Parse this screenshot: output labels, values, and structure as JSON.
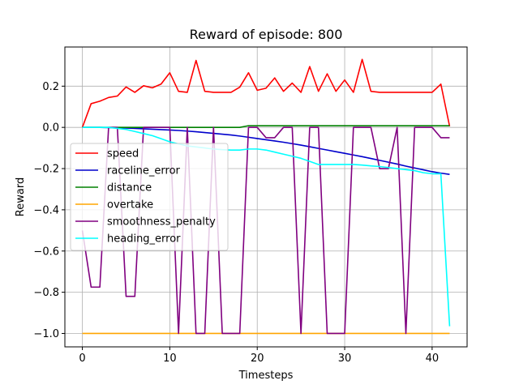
{
  "chart_data": {
    "type": "line",
    "title": "Reward of episode: 800",
    "xlabel": "Timesteps",
    "ylabel": "Reward",
    "xlim": [
      -2,
      44
    ],
    "ylim": [
      -1.065,
      0.39
    ],
    "xticks": [
      0,
      10,
      20,
      30,
      40
    ],
    "yticks": [
      -1.0,
      -0.8,
      -0.6,
      -0.4,
      -0.2,
      0.0,
      0.2
    ],
    "ytick_labels": [
      "−1.0",
      "−0.8",
      "−0.6",
      "−0.4",
      "−0.2",
      "0.0",
      "0.2"
    ],
    "grid": true,
    "legend_position": "center-left",
    "x": [
      0,
      1,
      2,
      3,
      4,
      5,
      6,
      7,
      8,
      9,
      10,
      11,
      12,
      13,
      14,
      15,
      16,
      17,
      18,
      19,
      20,
      21,
      22,
      23,
      24,
      25,
      26,
      27,
      28,
      29,
      30,
      31,
      32,
      33,
      34,
      35,
      36,
      37,
      38,
      39,
      40,
      41,
      42
    ],
    "series": [
      {
        "name": "speed",
        "color": "#ff0000",
        "values": [
          0.0,
          0.115,
          0.127,
          0.145,
          0.152,
          0.196,
          0.17,
          0.202,
          0.192,
          0.21,
          0.265,
          0.175,
          0.17,
          0.325,
          0.175,
          0.17,
          0.17,
          0.17,
          0.195,
          0.265,
          0.18,
          0.19,
          0.24,
          0.175,
          0.215,
          0.17,
          0.295,
          0.175,
          0.26,
          0.175,
          0.23,
          0.17,
          0.33,
          0.175,
          0.17,
          0.17,
          0.17,
          0.17,
          0.17,
          0.17,
          0.17,
          0.21,
          0.005
        ]
      },
      {
        "name": "raceline_error",
        "color": "#0000cc",
        "values": [
          0.0,
          0.0,
          0.0,
          -0.001,
          -0.002,
          -0.003,
          -0.005,
          -0.007,
          -0.009,
          -0.011,
          -0.013,
          -0.015,
          -0.018,
          -0.021,
          -0.025,
          -0.029,
          -0.033,
          -0.037,
          -0.042,
          -0.048,
          -0.054,
          -0.06,
          -0.066,
          -0.072,
          -0.079,
          -0.086,
          -0.094,
          -0.102,
          -0.11,
          -0.118,
          -0.126,
          -0.134,
          -0.142,
          -0.151,
          -0.16,
          -0.169,
          -0.178,
          -0.188,
          -0.197,
          -0.206,
          -0.215,
          -0.222,
          -0.228
        ]
      },
      {
        "name": "distance",
        "color": "#008000",
        "values": [
          0.0,
          0.0,
          0.0,
          0.0,
          0.0,
          0.0,
          0.0,
          0.0,
          0.0,
          0.0,
          0.0,
          0.0,
          0.0,
          0.0,
          0.0,
          0.0,
          0.0,
          0.0,
          0.0,
          0.008,
          0.008,
          0.008,
          0.008,
          0.008,
          0.008,
          0.008,
          0.008,
          0.008,
          0.008,
          0.008,
          0.008,
          0.008,
          0.008,
          0.008,
          0.008,
          0.008,
          0.008,
          0.008,
          0.008,
          0.008,
          0.008,
          0.008,
          0.008
        ]
      },
      {
        "name": "overtake",
        "color": "#ffa500",
        "values": [
          -1.0,
          -1.0,
          -1.0,
          -1.0,
          -1.0,
          -1.0,
          -1.0,
          -1.0,
          -1.0,
          -1.0,
          -1.0,
          -1.0,
          -1.0,
          -1.0,
          -1.0,
          -1.0,
          -1.0,
          -1.0,
          -1.0,
          -1.0,
          -1.0,
          -1.0,
          -1.0,
          -1.0,
          -1.0,
          -1.0,
          -1.0,
          -1.0,
          -1.0,
          -1.0,
          -1.0,
          -1.0,
          -1.0,
          -1.0,
          -1.0,
          -1.0,
          -1.0,
          -1.0,
          -1.0,
          -1.0,
          -1.0,
          -1.0,
          -1.0
        ]
      },
      {
        "name": "smoothness_penalty",
        "color": "#800080",
        "values": [
          -0.5,
          -0.775,
          -0.775,
          0.0,
          0.0,
          -0.82,
          -0.82,
          0.0,
          0.0,
          0.0,
          0.0,
          -1.0,
          0.0,
          -1.0,
          -1.0,
          0.0,
          -1.0,
          -1.0,
          -1.0,
          0.0,
          0.0,
          -0.05,
          -0.05,
          0.0,
          0.0,
          -1.0,
          0.0,
          0.0,
          -1.0,
          -1.0,
          -1.0,
          0.0,
          0.0,
          0.0,
          -0.2,
          -0.2,
          0.0,
          -1.0,
          0.0,
          0.0,
          0.0,
          -0.05,
          -0.05
        ]
      },
      {
        "name": "heading_error",
        "color": "#00ffff",
        "values": [
          0.0,
          0.0,
          0.0,
          0.0,
          -0.005,
          -0.01,
          -0.02,
          -0.03,
          -0.04,
          -0.055,
          -0.07,
          -0.08,
          -0.09,
          -0.095,
          -0.1,
          -0.105,
          -0.108,
          -0.11,
          -0.11,
          -0.105,
          -0.105,
          -0.11,
          -0.12,
          -0.13,
          -0.14,
          -0.15,
          -0.165,
          -0.18,
          -0.18,
          -0.18,
          -0.18,
          -0.18,
          -0.183,
          -0.187,
          -0.19,
          -0.195,
          -0.2,
          -0.205,
          -0.21,
          -0.22,
          -0.225,
          -0.225,
          -0.965
        ]
      }
    ]
  }
}
